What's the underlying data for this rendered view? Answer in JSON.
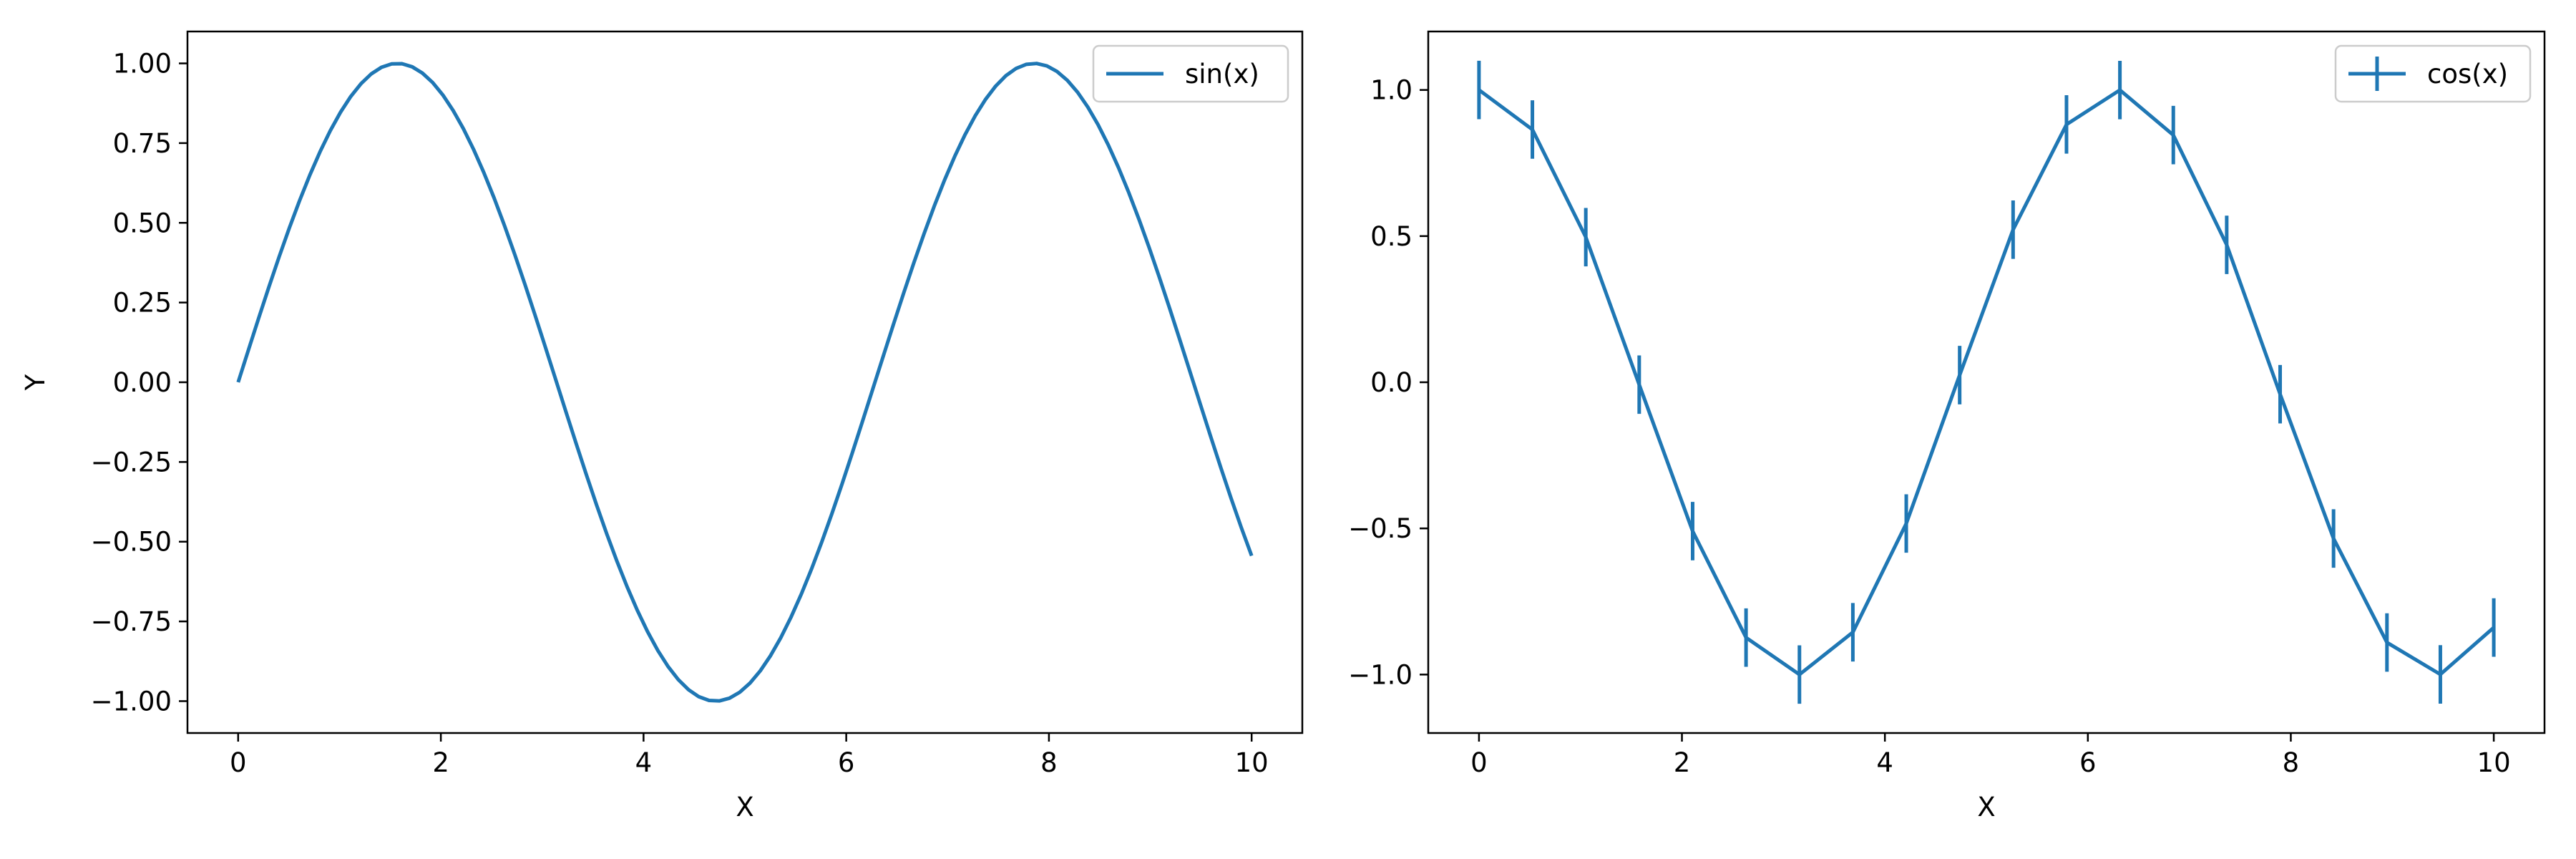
{
  "colors": {
    "series": "#1f77b4",
    "axes": "#000000",
    "background": "#ffffff",
    "legend_border": "#cccccc"
  },
  "chart_data": [
    {
      "type": "line",
      "function": "sin(x)",
      "x_range": [
        0,
        10
      ],
      "sample_count": 100,
      "x": [
        0,
        1.5708,
        3.1416,
        4.7124,
        6.2832,
        7.854,
        9.4248,
        10
      ],
      "y": [
        0,
        1,
        0,
        -1,
        0,
        1,
        0,
        -0.544
      ],
      "series": [
        {
          "name": "sin(x)",
          "color": "#1f77b4"
        }
      ],
      "xlabel": "X",
      "ylabel": "Y",
      "xlim": [
        -0.5,
        10.5
      ],
      "ylim": [
        -1.1,
        1.1
      ],
      "xticks": [
        0,
        2,
        4,
        6,
        8,
        10
      ],
      "yticks": [
        -1.0,
        -0.75,
        -0.5,
        -0.25,
        0.0,
        0.25,
        0.5,
        0.75,
        1.0
      ],
      "xtick_labels": [
        "0",
        "2",
        "4",
        "6",
        "8",
        "10"
      ],
      "ytick_labels": [
        "−1.00",
        "−0.75",
        "−0.50",
        "−0.25",
        "0.00",
        "0.25",
        "0.50",
        "0.75",
        "1.00"
      ],
      "grid": false,
      "legend": "top-right"
    },
    {
      "type": "line",
      "function": "cos(x)",
      "error_bars": true,
      "x": [
        0,
        0.5263,
        1.0526,
        1.5789,
        2.1053,
        2.6316,
        3.1579,
        3.6842,
        4.2105,
        4.7368,
        5.2632,
        5.7895,
        6.3158,
        6.8421,
        7.3684,
        7.8947,
        8.4211,
        8.9474,
        9.4737,
        10
      ],
      "y": [
        1,
        0.8646,
        0.4964,
        -0.0082,
        -0.5093,
        -0.8735,
        -0.9999,
        -0.8553,
        -0.4833,
        0.0245,
        0.522,
        0.882,
        0.9997,
        0.8457,
        0.47,
        -0.0408,
        -0.5345,
        -0.8904,
        -0.9995,
        -0.8391
      ],
      "yerr": 0.1,
      "series": [
        {
          "name": "cos(x)",
          "color": "#1f77b4"
        }
      ],
      "xlabel": "X",
      "ylabel": "",
      "xlim": [
        -0.5,
        10.5
      ],
      "ylim": [
        -1.2,
        1.2
      ],
      "xticks": [
        0,
        2,
        4,
        6,
        8,
        10
      ],
      "yticks": [
        -1.0,
        -0.5,
        0.0,
        0.5,
        1.0
      ],
      "xtick_labels": [
        "0",
        "2",
        "4",
        "6",
        "8",
        "10"
      ],
      "ytick_labels": [
        "−1.0",
        "−0.5",
        "0.0",
        "0.5",
        "1.0"
      ],
      "grid": false,
      "legend": "top-right"
    }
  ]
}
